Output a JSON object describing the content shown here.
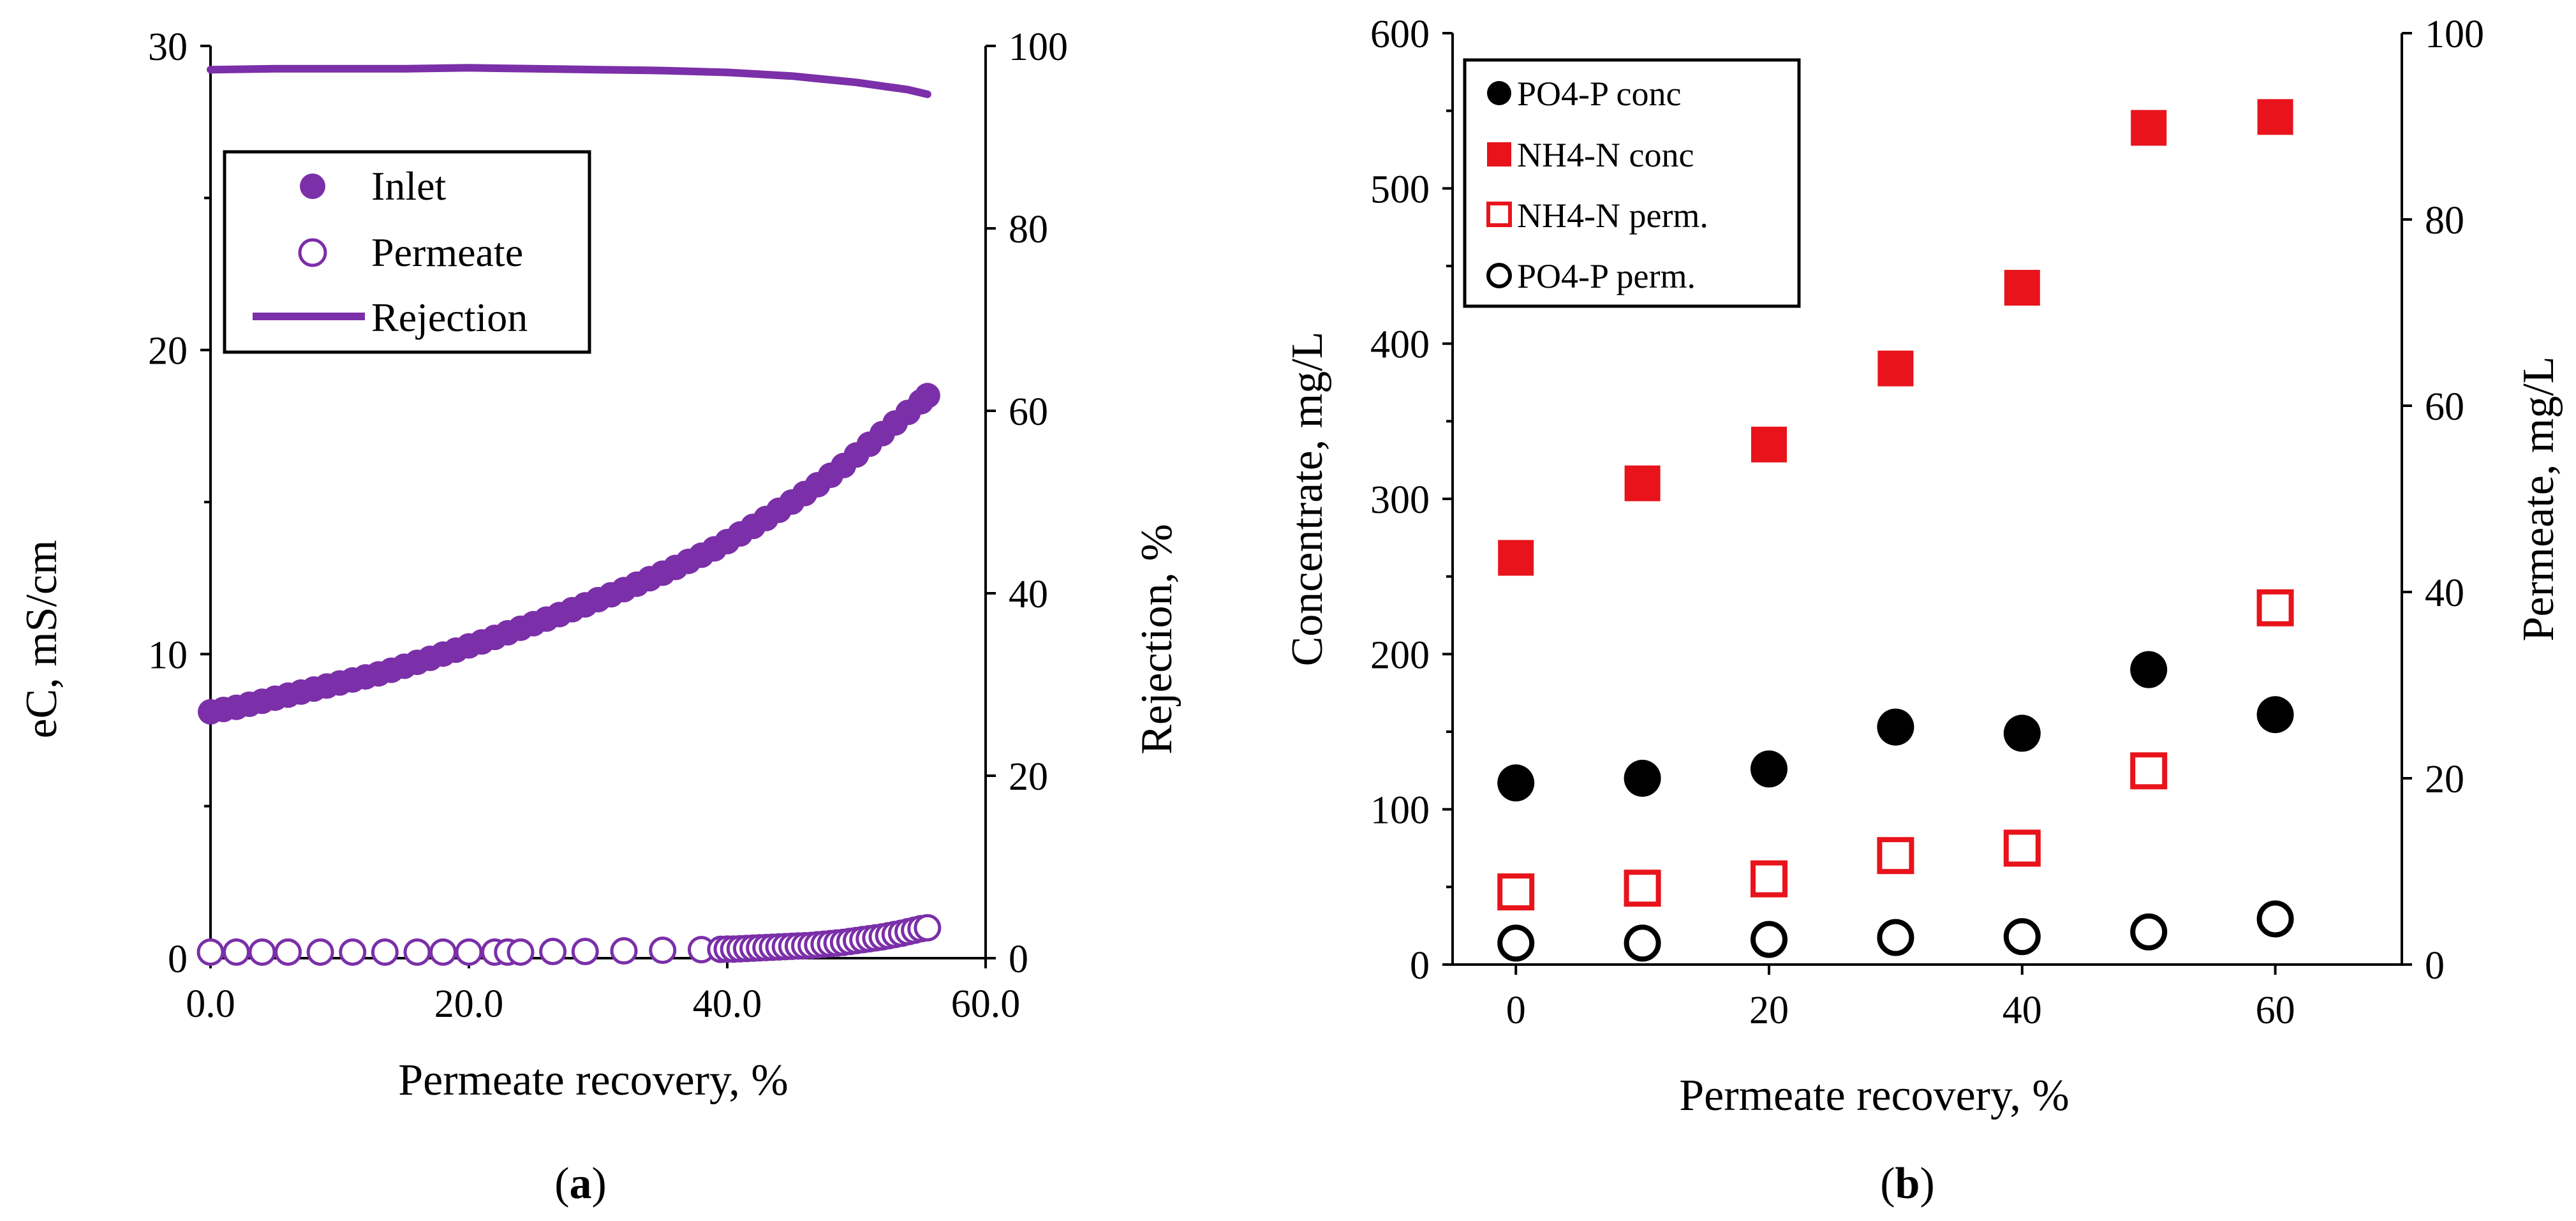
{
  "colors": {
    "purple": "#7B2FA8",
    "red": "#E8131B",
    "black": "#000000"
  },
  "chart_data": [
    {
      "type": "scatter",
      "panel": "a",
      "panel_label": {
        "prefix": "(",
        "letter": "a",
        "suffix": ")"
      },
      "xlabel": "Permeate recovery, %",
      "ylabel": "eC, mS/cm",
      "y2label": "Rejection, %",
      "xlim": [
        0,
        60
      ],
      "ylim": [
        0,
        30
      ],
      "y2lim": [
        0,
        100
      ],
      "x_ticks": [
        "0.0",
        "20.0",
        "40.0",
        "60.0"
      ],
      "y_ticks": [
        "0",
        "10",
        "20",
        "30"
      ],
      "y2_ticks": [
        "0",
        "20",
        "40",
        "60",
        "80",
        "100"
      ],
      "legend_position": "top-left-inside",
      "legend": [
        "Inlet",
        "Permeate",
        "Rejection"
      ],
      "series": [
        {
          "name": "Inlet",
          "axis": "left",
          "marker": "filled-circle",
          "x": [
            0,
            1,
            2,
            3,
            4,
            5,
            6,
            7,
            8,
            9,
            10,
            11,
            12,
            13,
            14,
            15,
            16,
            17,
            18,
            19,
            20,
            21,
            22,
            23,
            24,
            25,
            26,
            27,
            28,
            29,
            30,
            31,
            32,
            33,
            34,
            35,
            36,
            37,
            38,
            39,
            40,
            41,
            42,
            43,
            44,
            45,
            46,
            47,
            48,
            49,
            50,
            51,
            52,
            53,
            54,
            55,
            55.5
          ],
          "values": [
            8.1,
            8.18,
            8.25,
            8.35,
            8.45,
            8.55,
            8.65,
            8.75,
            8.85,
            8.95,
            9.05,
            9.15,
            9.25,
            9.35,
            9.47,
            9.6,
            9.73,
            9.86,
            10.0,
            10.13,
            10.27,
            10.4,
            10.55,
            10.7,
            10.85,
            11.0,
            11.15,
            11.3,
            11.46,
            11.62,
            11.79,
            11.95,
            12.12,
            12.3,
            12.48,
            12.66,
            12.85,
            13.05,
            13.25,
            13.46,
            13.7,
            13.95,
            14.2,
            14.46,
            14.73,
            15.0,
            15.28,
            15.57,
            15.88,
            16.2,
            16.55,
            16.9,
            17.25,
            17.6,
            17.95,
            18.3,
            18.5
          ]
        },
        {
          "name": "Permeate",
          "axis": "left",
          "marker": "open-circle",
          "x": [
            0,
            2,
            4,
            6,
            8.5,
            11,
            13.5,
            16,
            18,
            20,
            22,
            23,
            24,
            26.5,
            29,
            32,
            35,
            38,
            39.5,
            40,
            40.5,
            41,
            41.5,
            42,
            42.5,
            43,
            43.5,
            44,
            44.5,
            45,
            45.5,
            46,
            46.5,
            47,
            47.5,
            48,
            48.5,
            49,
            49.5,
            50,
            50.5,
            51,
            51.5,
            52,
            52.5,
            53,
            53.5,
            54,
            54.5,
            55,
            55.5
          ],
          "values": [
            0.2,
            0.2,
            0.2,
            0.2,
            0.2,
            0.2,
            0.2,
            0.2,
            0.2,
            0.2,
            0.2,
            0.2,
            0.2,
            0.22,
            0.22,
            0.24,
            0.26,
            0.28,
            0.29,
            0.3,
            0.3,
            0.31,
            0.32,
            0.33,
            0.34,
            0.35,
            0.36,
            0.37,
            0.38,
            0.39,
            0.4,
            0.41,
            0.42,
            0.44,
            0.46,
            0.48,
            0.5,
            0.52,
            0.55,
            0.58,
            0.61,
            0.64,
            0.67,
            0.7,
            0.74,
            0.78,
            0.82,
            0.87,
            0.92,
            0.97,
            1.0
          ]
        },
        {
          "name": "Rejection",
          "axis": "right",
          "marker": "line",
          "x": [
            0,
            5,
            10,
            15,
            20,
            25,
            30,
            35,
            40,
            45,
            50,
            52,
            54,
            55.5
          ],
          "values": [
            97.4,
            97.5,
            97.5,
            97.5,
            97.6,
            97.5,
            97.4,
            97.3,
            97.1,
            96.7,
            96.0,
            95.6,
            95.2,
            94.7
          ]
        }
      ]
    },
    {
      "type": "scatter",
      "panel": "b",
      "panel_label": {
        "prefix": "(",
        "letter": "b",
        "suffix": ")"
      },
      "xlabel": "Permeate recovery, %",
      "ylabel": "Concentrate, mg/L",
      "y2label": "Permeate, mg/L",
      "xlim": [
        -5,
        70
      ],
      "ylim": [
        0,
        600
      ],
      "y2lim": [
        0,
        100
      ],
      "x_ticks": [
        "0",
        "20",
        "40",
        "60"
      ],
      "y_ticks": [
        "0",
        "100",
        "200",
        "300",
        "400",
        "500",
        "600"
      ],
      "y2_ticks": [
        "0",
        "20",
        "40",
        "60",
        "80",
        "100"
      ],
      "legend_position": "top-left-inside",
      "legend": [
        "PO4-P conc",
        "NH4-N conc",
        "NH4-N perm.",
        "PO4-P perm."
      ],
      "x": [
        0,
        10,
        20,
        30,
        40,
        50,
        60
      ],
      "series": [
        {
          "name": "PO4-P conc",
          "axis": "left",
          "marker": "filled-circle",
          "color": "#000000",
          "values": [
            117,
            120,
            126,
            153,
            149,
            190,
            161
          ]
        },
        {
          "name": "NH4-N conc",
          "axis": "left",
          "marker": "filled-square",
          "color": "#E8131B",
          "values": [
            262,
            310,
            335,
            384,
            436,
            539,
            546
          ]
        },
        {
          "name": "NH4-N perm.",
          "axis": "right",
          "marker": "open-square",
          "color": "#E8131B",
          "values": [
            7.8,
            8.2,
            9.2,
            11.7,
            12.5,
            20.8,
            38.3
          ]
        },
        {
          "name": "PO4-P perm.",
          "axis": "right",
          "marker": "open-circle",
          "color": "#000000",
          "values": [
            2.3,
            2.3,
            2.7,
            2.9,
            3.0,
            3.5,
            4.9
          ]
        }
      ]
    }
  ]
}
